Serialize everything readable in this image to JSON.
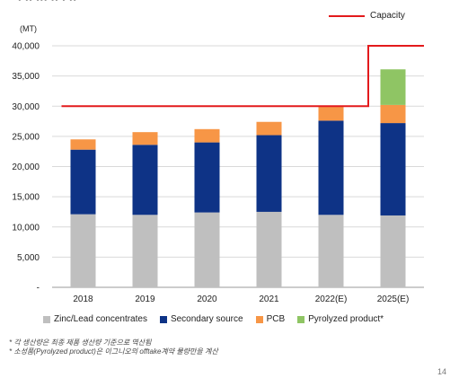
{
  "chart_data": {
    "type": "bar",
    "stacked": true,
    "unit_label": "(MT)",
    "categories": [
      "2018",
      "2019",
      "2020",
      "2021",
      "2022(E)",
      "2025(E)"
    ],
    "series": [
      {
        "name": "Zinc/Lead concentrates",
        "color": "#bfbfbf",
        "values": [
          12100,
          12000,
          12400,
          12500,
          12000,
          11900
        ]
      },
      {
        "name": "Secondary source",
        "color": "#0e3386",
        "values": [
          10700,
          11600,
          11600,
          12700,
          15600,
          15300
        ]
      },
      {
        "name": "PCB",
        "color": "#f79646",
        "values": [
          1700,
          2100,
          2200,
          2200,
          2400,
          3000
        ]
      },
      {
        "name": "Pyrolyzed product*",
        "color": "#8fc564",
        "values": [
          0,
          0,
          0,
          0,
          0,
          5900
        ]
      }
    ],
    "capacity": {
      "name": "Capacity",
      "color": "#e31a1c",
      "values": [
        30000,
        30000,
        30000,
        30000,
        30000,
        40000
      ]
    },
    "ylim": [
      0,
      40000
    ],
    "yticks": [
      0,
      5000,
      10000,
      15000,
      20000,
      25000,
      30000,
      35000,
      40000
    ],
    "ytick_labels": [
      "-",
      "5,000",
      "10,000",
      "15,000",
      "20,000",
      "25,000",
      "30,000",
      "35,000",
      "40,000"
    ],
    "grid": true,
    "legend": "bottom"
  },
  "header": {
    "title_fragment": "· ·· ··· ·· · ··"
  },
  "footnotes": [
    "* 각 생산량은 최종 제품 생산량 기준으로 역산됨",
    "* 소성품(Pyrolyzed product)은 이그니오의 offtake계약 물량만을 계산"
  ],
  "page_number": "14"
}
